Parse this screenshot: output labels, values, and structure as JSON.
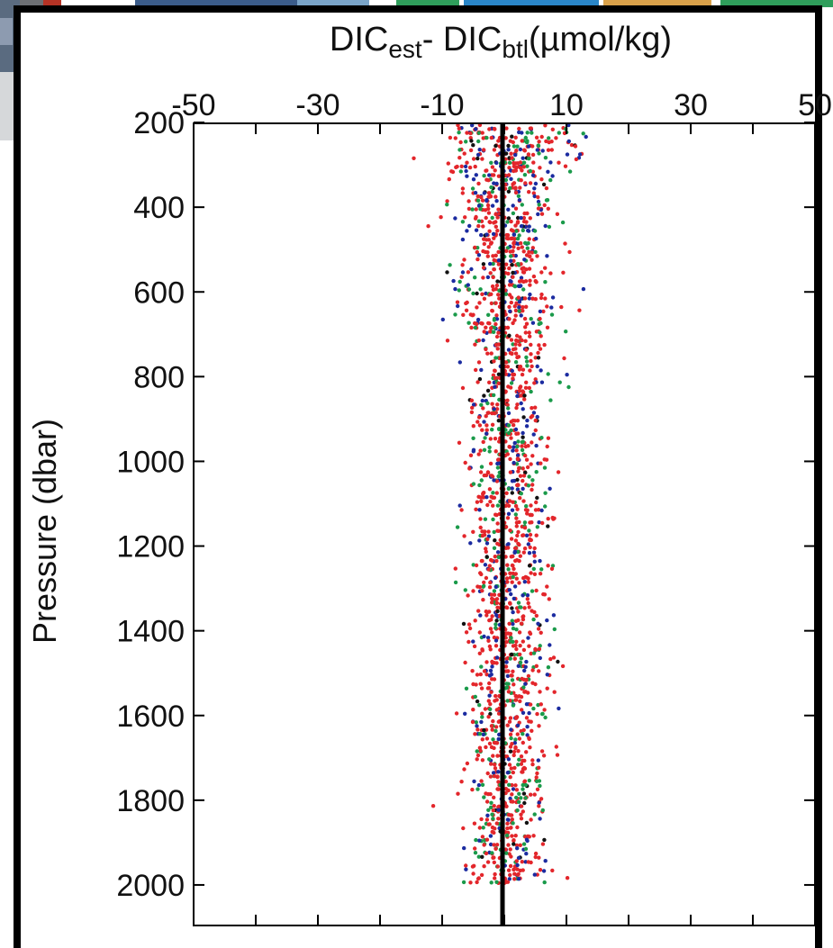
{
  "chart_data": {
    "type": "scatter",
    "title": {
      "parts": [
        {
          "text": "DIC",
          "shift": "baseline"
        },
        {
          "text": "est",
          "shift": "sub"
        },
        {
          "text": "- DIC",
          "shift": "baseline"
        },
        {
          "text": "btl",
          "shift": "sub"
        },
        {
          "text": "(µmol/kg)",
          "shift": "baseline"
        }
      ]
    },
    "ylabel": "Pressure (dbar)",
    "xlabel": "",
    "x_axis_position": "top",
    "x_ticks": [
      -50,
      -30,
      -10,
      10,
      30,
      50
    ],
    "x_tick_positions": [
      -50,
      -30,
      -10,
      10,
      30,
      50
    ],
    "x_minor_ticks": [
      -40,
      -20,
      0,
      20,
      40
    ],
    "y_ticks": [
      200,
      400,
      600,
      800,
      1000,
      1200,
      1400,
      1600,
      1800,
      2000
    ],
    "ylim": [
      2000,
      100
    ],
    "y_inverted": true,
    "grid": false,
    "reference_line": {
      "x": 0,
      "color": "#000000"
    },
    "series_colors": [
      "#e3262b",
      "#1a9a4a",
      "#1b2ba0",
      "#111111"
    ],
    "scatter_description": "Clouds of bottle-minus-estimate residual points at each sampling depth, approximately centered on 0, widest in the upper 300 dbar (about -30 to +28) and narrowing to roughly ±10 at depth.",
    "decor_colors": [
      "#3b5c8a",
      "#7aa4c8",
      "#2f9e5b",
      "#2a86c8",
      "#d9a14a"
    ]
  }
}
